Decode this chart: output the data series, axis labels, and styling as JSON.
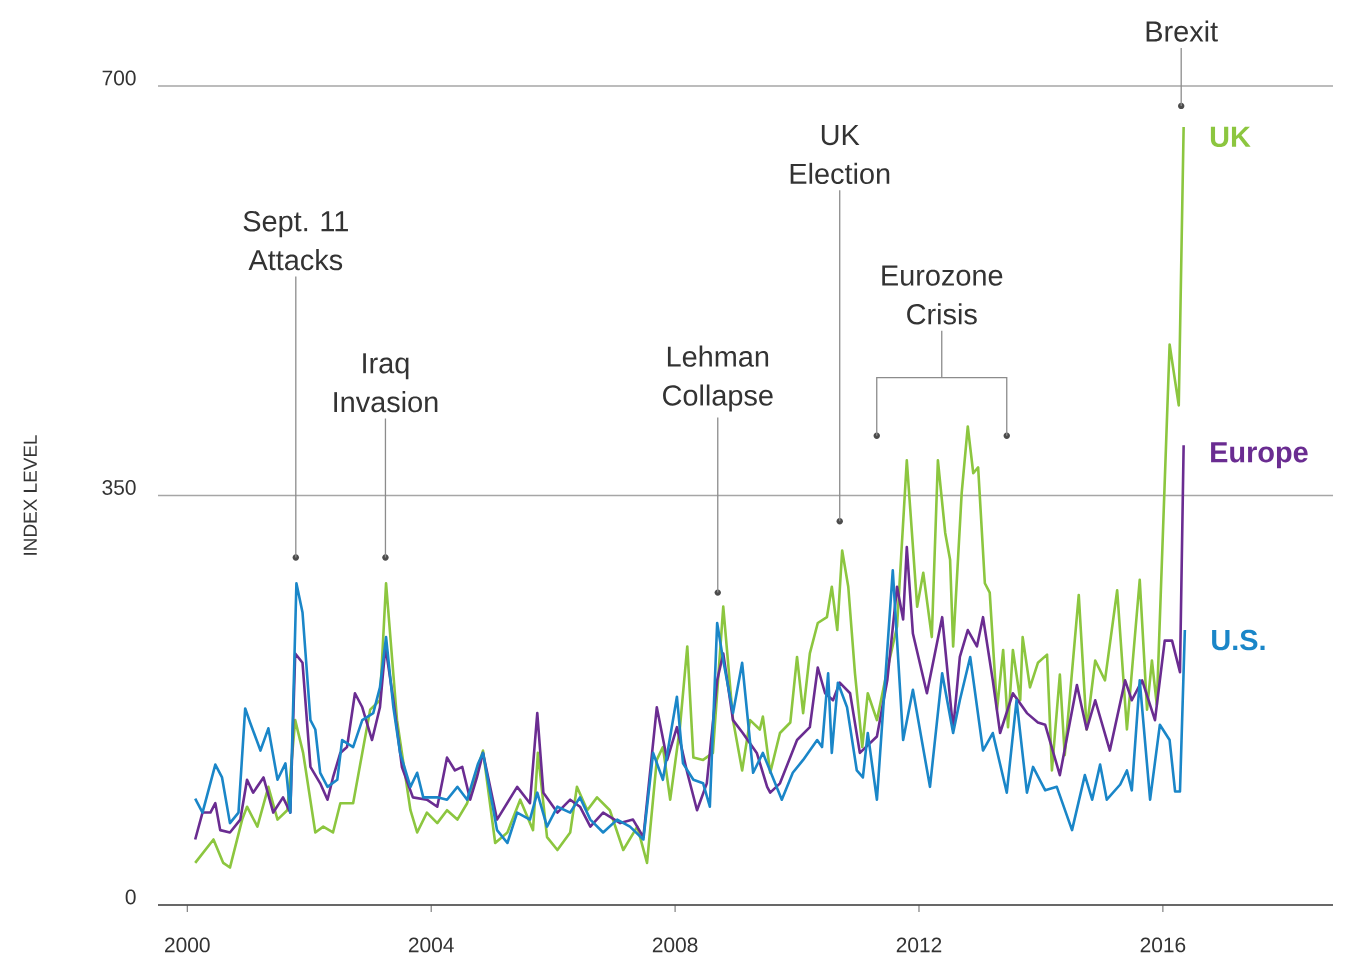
{
  "chart_data": {
    "type": "line",
    "ylabel": "INDEX LEVEL",
    "xlim": [
      1999.52,
      2018.79
    ],
    "ylim": [
      0,
      700
    ],
    "xticks": [
      2000,
      2004,
      2008,
      2012,
      2016
    ],
    "yticks": [
      0,
      350,
      700
    ],
    "grid": "y",
    "legend": false,
    "marker": "none",
    "line_style": "solid",
    "annotations": [
      {
        "text": "Sept. 11 Attacks",
        "x": 2001.78,
        "y": 297
      },
      {
        "text": "Iraq Invasion",
        "x": 2003.25,
        "y": 297
      },
      {
        "text": "Lehman Collapse",
        "x": 2008.7,
        "y": 267
      },
      {
        "text": "UK Election",
        "x": 2010.7,
        "y": 328
      },
      "Eurozone Crisis",
      {
        "text": "Brexit",
        "x": 2016.3,
        "y": 683
      }
    ],
    "series": [
      {
        "name": "UK",
        "color": "#8cc63f",
        "x": [
          2000.13,
          2000.43,
          2000.59,
          2000.7,
          2000.9,
          2000.98,
          2001.15,
          2001.33,
          2001.48,
          2001.64,
          2001.77,
          2001.9,
          2002.1,
          2002.23,
          2002.39,
          2002.51,
          2002.72,
          2002.87,
          2003.0,
          2003.16,
          2003.26,
          2003.44,
          2003.66,
          2003.77,
          2003.93,
          2004.1,
          2004.26,
          2004.43,
          2004.59,
          2004.85,
          2005.05,
          2005.25,
          2005.46,
          2005.67,
          2005.75,
          2005.9,
          2006.07,
          2006.28,
          2006.39,
          2006.56,
          2006.72,
          2006.93,
          2007.15,
          2007.38,
          2007.54,
          2007.7,
          2007.8,
          2007.92,
          2008.08,
          2008.2,
          2008.3,
          2008.46,
          2008.62,
          2008.79,
          2008.95,
          2009.1,
          2009.23,
          2009.39,
          2009.44,
          2009.56,
          2009.72,
          2009.89,
          2010.0,
          2010.1,
          2010.21,
          2010.34,
          2010.49,
          2010.57,
          2010.66,
          2010.74,
          2010.84,
          2010.95,
          2011.07,
          2011.16,
          2011.31,
          2011.48,
          2011.64,
          2011.8,
          2011.97,
          2012.07,
          2012.21,
          2012.31,
          2012.43,
          2012.51,
          2012.56,
          2012.7,
          2012.8,
          2012.89,
          2012.97,
          2013.08,
          2013.16,
          2013.28,
          2013.38,
          2013.46,
          2013.54,
          2013.66,
          2013.7,
          2013.82,
          2013.95,
          2014.1,
          2014.18,
          2014.31,
          2014.39,
          2014.62,
          2014.75,
          2014.89,
          2015.05,
          2015.25,
          2015.41,
          2015.62,
          2015.74,
          2015.82,
          2015.9,
          2016.11,
          2016.26,
          2016.34
        ],
        "values": [
          36,
          56,
          36,
          32,
          73,
          84,
          67,
          101,
          73,
          81,
          158,
          130,
          62,
          67,
          62,
          87,
          87,
          130,
          167,
          175,
          275,
          158,
          81,
          62,
          79,
          70,
          81,
          73,
          87,
          132,
          53,
          62,
          90,
          64,
          130,
          58,
          47,
          62,
          101,
          81,
          92,
          81,
          47,
          67,
          36,
          124,
          135,
          90,
          152,
          221,
          126,
          124,
          130,
          255,
          158,
          115,
          158,
          150,
          161,
          113,
          147,
          156,
          212,
          164,
          215,
          241,
          246,
          272,
          235,
          303,
          272,
          198,
          135,
          181,
          158,
          201,
          238,
          380,
          255,
          284,
          229,
          380,
          318,
          295,
          221,
          352,
          409,
          369,
          374,
          275,
          267,
          167,
          218,
          152,
          218,
          175,
          229,
          186,
          207,
          214,
          115,
          197,
          128,
          265,
          150,
          209,
          192,
          269,
          150,
          278,
          167,
          209,
          171,
          479,
          427,
          665
        ]
      },
      {
        "name": "Europe",
        "color": "#6a2c91",
        "x": [
          2000.13,
          2000.25,
          2000.38,
          2000.46,
          2000.54,
          2000.7,
          2000.87,
          2000.98,
          2001.08,
          2001.25,
          2001.41,
          2001.57,
          2001.69,
          2001.77,
          2001.89,
          2002.02,
          2002.18,
          2002.3,
          2002.39,
          2002.51,
          2002.62,
          2002.75,
          2002.87,
          2003.03,
          2003.16,
          2003.25,
          2003.38,
          2003.52,
          2003.7,
          2003.93,
          2004.1,
          2004.26,
          2004.39,
          2004.51,
          2004.64,
          2004.75,
          2004.85,
          2005.08,
          2005.41,
          2005.62,
          2005.74,
          2005.84,
          2006.07,
          2006.28,
          2006.44,
          2006.61,
          2006.82,
          2007.1,
          2007.31,
          2007.48,
          2007.7,
          2007.87,
          2008.03,
          2008.2,
          2008.36,
          2008.52,
          2008.69,
          2008.79,
          2008.95,
          2009.11,
          2009.34,
          2009.51,
          2009.56,
          2009.72,
          2010.0,
          2010.21,
          2010.34,
          2010.46,
          2010.59,
          2010.7,
          2010.87,
          2011.03,
          2011.31,
          2011.48,
          2011.64,
          2011.74,
          2011.8,
          2011.9,
          2012.13,
          2012.38,
          2012.56,
          2012.67,
          2012.8,
          2012.95,
          2013.05,
          2013.21,
          2013.33,
          2013.54,
          2013.77,
          2013.95,
          2014.07,
          2014.31,
          2014.59,
          2014.75,
          2014.89,
          2015.13,
          2015.38,
          2015.49,
          2015.66,
          2015.87,
          2016.03,
          2016.15,
          2016.28,
          2016.34
        ],
        "values": [
          56,
          79,
          79,
          87,
          64,
          62,
          73,
          107,
          96,
          109,
          79,
          92,
          79,
          215,
          207,
          118,
          104,
          90,
          109,
          130,
          135,
          181,
          169,
          141,
          169,
          221,
          175,
          118,
          92,
          90,
          84,
          126,
          115,
          118,
          90,
          109,
          130,
          73,
          101,
          87,
          164,
          96,
          79,
          90,
          84,
          67,
          79,
          70,
          73,
          58,
          169,
          124,
          152,
          113,
          81,
          104,
          192,
          215,
          158,
          147,
          130,
          101,
          96,
          104,
          141,
          152,
          203,
          181,
          175,
          190,
          181,
          130,
          144,
          192,
          272,
          244,
          306,
          232,
          181,
          246,
          150,
          212,
          235,
          221,
          246,
          192,
          147,
          181,
          164,
          156,
          154,
          111,
          188,
          150,
          175,
          132,
          192,
          175,
          192,
          158,
          226,
          226,
          199,
          393
        ]
      },
      {
        "name": "U.S.",
        "color": "#1a86c8",
        "x": [
          2000.13,
          2000.25,
          2000.46,
          2000.57,
          2000.7,
          2000.84,
          2000.95,
          2001.03,
          2001.2,
          2001.33,
          2001.48,
          2001.61,
          2001.69,
          2001.79,
          2001.89,
          2002.02,
          2002.1,
          2002.18,
          2002.3,
          2002.46,
          2002.54,
          2002.72,
          2002.87,
          2003.05,
          2003.16,
          2003.26,
          2003.38,
          2003.49,
          2003.66,
          2003.77,
          2003.87,
          2004.1,
          2004.26,
          2004.43,
          2004.59,
          2004.77,
          2004.85,
          2005.08,
          2005.25,
          2005.41,
          2005.62,
          2005.74,
          2005.9,
          2006.07,
          2006.28,
          2006.44,
          2006.61,
          2006.82,
          2007.05,
          2007.26,
          2007.48,
          2007.64,
          2007.8,
          2008.03,
          2008.13,
          2008.3,
          2008.46,
          2008.57,
          2008.69,
          2008.79,
          2008.95,
          2009.1,
          2009.28,
          2009.44,
          2009.75,
          2009.93,
          2010.1,
          2010.33,
          2010.41,
          2010.51,
          2010.57,
          2010.67,
          2010.82,
          2010.98,
          2011.08,
          2011.16,
          2011.31,
          2011.57,
          2011.74,
          2011.9,
          2012.18,
          2012.38,
          2012.56,
          2012.67,
          2012.84,
          2013.05,
          2013.21,
          2013.44,
          2013.6,
          2013.77,
          2013.87,
          2014.07,
          2014.26,
          2014.51,
          2014.72,
          2014.84,
          2014.97,
          2015.08,
          2015.3,
          2015.41,
          2015.49,
          2015.62,
          2015.79,
          2015.95,
          2016.11,
          2016.2,
          2016.28,
          2016.36
        ],
        "values": [
          91,
          79,
          120,
          109,
          70,
          79,
          168,
          156,
          132,
          151,
          107,
          121,
          79,
          275,
          250,
          158,
          150,
          113,
          101,
          107,
          141,
          135,
          158,
          164,
          186,
          229,
          169,
          130,
          101,
          113,
          92,
          92,
          90,
          101,
          90,
          121,
          130,
          64,
          53,
          79,
          73,
          96,
          67,
          84,
          79,
          92,
          73,
          62,
          73,
          67,
          56,
          130,
          107,
          178,
          121,
          107,
          104,
          84,
          241,
          209,
          164,
          207,
          113,
          130,
          90,
          113,
          124,
          141,
          135,
          198,
          130,
          190,
          169,
          115,
          109,
          147,
          90,
          286,
          141,
          184,
          101,
          198,
          147,
          175,
          212,
          132,
          147,
          96,
          175,
          96,
          118,
          98,
          101,
          64,
          111,
          90,
          120,
          90,
          103,
          115,
          98,
          192,
          90,
          154,
          141,
          97,
          97,
          235
        ]
      }
    ]
  }
}
